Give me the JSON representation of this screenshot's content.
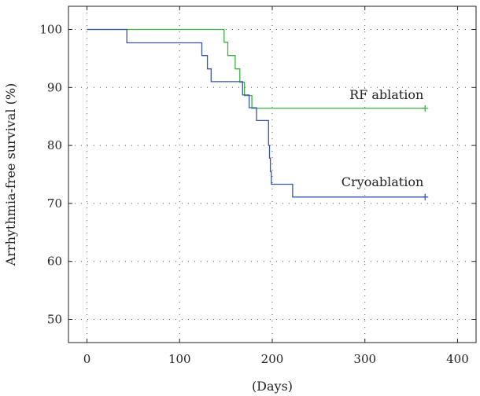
{
  "chart_data": {
    "type": "line",
    "title": "",
    "xlabel": "(Days)",
    "ylabel": "Arrhythmia-free survival (%)",
    "xlim": [
      -20,
      420
    ],
    "ylim": [
      46,
      104
    ],
    "x_ticks": [
      0,
      100,
      200,
      300,
      400
    ],
    "y_ticks": [
      50,
      60,
      70,
      80,
      90,
      100
    ],
    "grid": "dotted",
    "step": true,
    "series": [
      {
        "name": "RF ablation",
        "color": "#3cb043",
        "end_marker": "plus",
        "points": [
          [
            0,
            100
          ],
          [
            148,
            100
          ],
          [
            148,
            97.8
          ],
          [
            152,
            97.8
          ],
          [
            152,
            95.5
          ],
          [
            160,
            95.5
          ],
          [
            160,
            93.2
          ],
          [
            165,
            93.2
          ],
          [
            165,
            90.9
          ],
          [
            170,
            90.9
          ],
          [
            170,
            88.6
          ],
          [
            178,
            88.6
          ],
          [
            178,
            86.4
          ],
          [
            365,
            86.4
          ]
        ]
      },
      {
        "name": "Cryoablation",
        "color": "#3a54a4",
        "end_marker": "plus",
        "points": [
          [
            0,
            100
          ],
          [
            43,
            100
          ],
          [
            43,
            97.7
          ],
          [
            124,
            97.7
          ],
          [
            124,
            95.5
          ],
          [
            130,
            95.5
          ],
          [
            130,
            93.2
          ],
          [
            134,
            93.2
          ],
          [
            134,
            91.0
          ],
          [
            168,
            91.0
          ],
          [
            168,
            88.7
          ],
          [
            175,
            88.7
          ],
          [
            175,
            86.5
          ],
          [
            183,
            86.5
          ],
          [
            183,
            84.3
          ],
          [
            196,
            84.3
          ],
          [
            196,
            80.0
          ],
          [
            197,
            80.0
          ],
          [
            197,
            77.8
          ],
          [
            198,
            77.8
          ],
          [
            198,
            75.5
          ],
          [
            199,
            75.5
          ],
          [
            199,
            73.3
          ],
          [
            222,
            73.3
          ],
          [
            222,
            71.1
          ],
          [
            365,
            71.1
          ]
        ]
      }
    ]
  }
}
